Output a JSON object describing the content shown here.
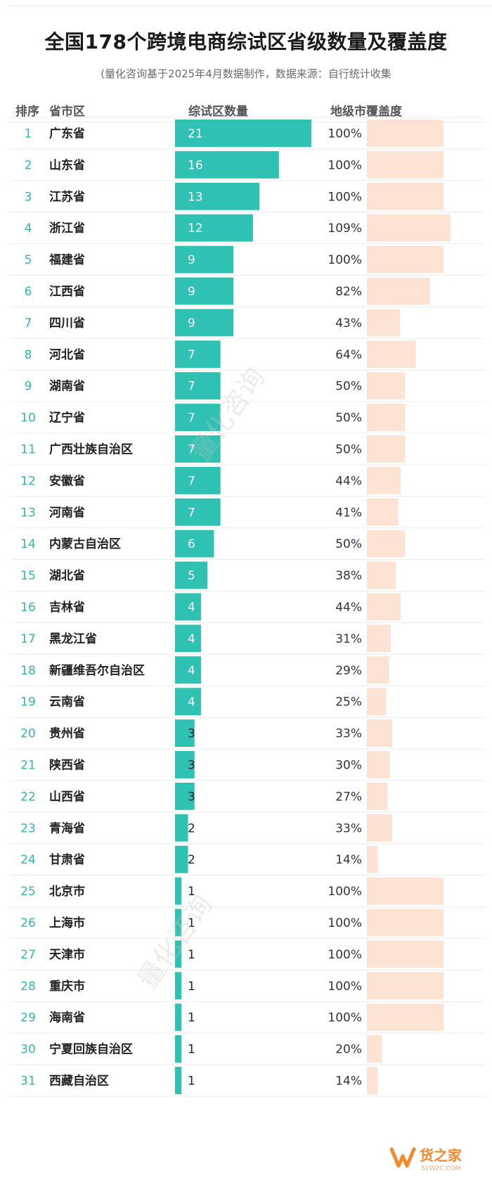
{
  "title": "全国178个跨境电商综试区省级数量及覆盖度",
  "subtitle": "(量化咨询基于2025年4月数据制作，数据来源：自行统计收集",
  "header": {
    "rank": "排序",
    "region": "省市区",
    "count": "综试区数量",
    "coverage": "地级市覆盖度"
  },
  "colors": {
    "bar": "#2fc1b1",
    "coverage_bar": "#fde3d3",
    "rank_text": "#2fb8a8"
  },
  "watermark_text": "量化咨询",
  "logo": {
    "brand": "货之家",
    "sub": "51W2C.COM"
  },
  "chart_data": {
    "type": "bar",
    "categories": [
      "广东省",
      "山东省",
      "江苏省",
      "浙江省",
      "福建省",
      "江西省",
      "四川省",
      "河北省",
      "湖南省",
      "辽宁省",
      "广西壮族自治区",
      "安徽省",
      "河南省",
      "内蒙古自治区",
      "湖北省",
      "吉林省",
      "黑龙江省",
      "新疆维吾尔自治区",
      "云南省",
      "贵州省",
      "陕西省",
      "山西省",
      "青海省",
      "甘肃省",
      "北京市",
      "上海市",
      "天津市",
      "重庆市",
      "海南省",
      "宁夏回族自治区",
      "西藏自治区"
    ],
    "ranks": [
      "1",
      "2",
      "3",
      "4",
      "5",
      "6",
      "7",
      "8",
      "9",
      "10",
      "11",
      "12",
      "13",
      "14",
      "15",
      "16",
      "17",
      "18",
      "19",
      "20",
      "21",
      "22",
      "23",
      "24",
      "25",
      "26",
      "27",
      "28",
      "29",
      "30",
      "31"
    ],
    "series": [
      {
        "name": "综试区数量",
        "values": [
          21,
          16,
          13,
          12,
          9,
          9,
          9,
          7,
          7,
          7,
          7,
          7,
          7,
          6,
          5,
          4,
          4,
          4,
          4,
          3,
          3,
          3,
          2,
          2,
          1,
          1,
          1,
          1,
          1,
          1,
          1
        ]
      },
      {
        "name": "地级市覆盖度",
        "values": [
          100,
          100,
          100,
          109,
          100,
          82,
          43,
          64,
          50,
          50,
          50,
          44,
          41,
          50,
          38,
          44,
          31,
          29,
          25,
          33,
          30,
          27,
          33,
          14,
          100,
          100,
          100,
          100,
          100,
          20,
          14
        ],
        "labels": [
          "100%",
          "100%",
          "100%",
          "109%",
          "100%",
          "82%",
          "43%",
          "64%",
          "50%",
          "50%",
          "50%",
          "44%",
          "41%",
          "50%",
          "38%",
          "44%",
          "31%",
          "29%",
          "25%",
          "33%",
          "30%",
          "27%",
          "33%",
          "14%",
          "100%",
          "100%",
          "100%",
          "100%",
          "100%",
          "20%",
          "14%"
        ]
      }
    ],
    "xlabel": "",
    "ylabel": ""
  }
}
